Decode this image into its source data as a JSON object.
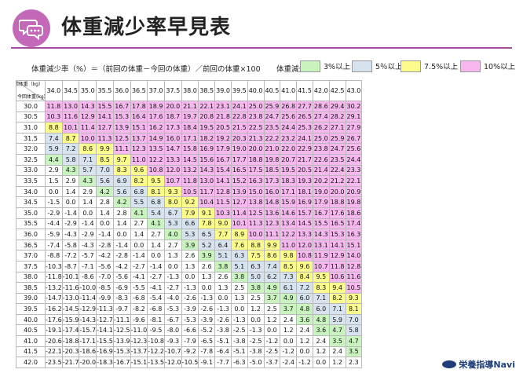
{
  "title": "体重減少率早見表",
  "icon": "speech-bubbles-icon",
  "formula": "体重減少率（%）＝（前回の体重－今回の体重）／前回の体重×100",
  "legend": {
    "label": "体重減少率",
    "items": [
      {
        "text": "3%以上",
        "color": "#c9f4bf"
      },
      {
        "text": "5％以上",
        "color": "#d7e4f0"
      },
      {
        "text": "7.5%以上",
        "color": "#fcfc8c"
      },
      {
        "text": "10%以上",
        "color": "#f7b8ef"
      }
    ]
  },
  "corner": {
    "prev": "前回体重（kg）",
    "curr": "今回体重(kg)"
  },
  "prev_weights": [
    "34.0",
    "34.5",
    "35.0",
    "35.5",
    "36.0",
    "36.5",
    "37.0",
    "37.5",
    "38.0",
    "38.5",
    "39.0",
    "39.5",
    "40.0",
    "40.5",
    "41.0",
    "41.5",
    "42.0",
    "42.5",
    "43.0"
  ],
  "rows": [
    {
      "w": "30.0",
      "v": [
        "11.8",
        "13.0",
        "14.3",
        "15.5",
        "16.7",
        "17.8",
        "18.9",
        "20.0",
        "21.1",
        "22.1",
        "23.1",
        "24.1",
        "25.0",
        "25.9",
        "26.8",
        "27.7",
        "28.6",
        "29.4",
        "30.2"
      ]
    },
    {
      "w": "30.5",
      "v": [
        "10.3",
        "11.6",
        "12.9",
        "14.1",
        "15.3",
        "16.4",
        "17.6",
        "18.7",
        "19.7",
        "20.8",
        "21.8",
        "22.8",
        "23.8",
        "24.7",
        "25.6",
        "26.5",
        "27.4",
        "28.2",
        "29.1"
      ]
    },
    {
      "w": "31.0",
      "v": [
        "8.8",
        "10.1",
        "11.4",
        "12.7",
        "13.9",
        "15.1",
        "16.2",
        "17.3",
        "18.4",
        "19.5",
        "20.5",
        "21.5",
        "22.5",
        "23.5",
        "24.4",
        "25.3",
        "26.2",
        "27.1",
        "27.9"
      ]
    },
    {
      "w": "31.5",
      "v": [
        "7.4",
        "8.7",
        "10.0",
        "11.3",
        "12.5",
        "13.7",
        "14.9",
        "16.0",
        "17.1",
        "18.2",
        "19.2",
        "20.3",
        "21.3",
        "22.2",
        "23.2",
        "24.1",
        "25.0",
        "25.9",
        "26.7"
      ]
    },
    {
      "w": "32.0",
      "v": [
        "5.9",
        "7.2",
        "8.6",
        "9.9",
        "11.1",
        "12.3",
        "13.5",
        "14.7",
        "15.8",
        "16.9",
        "17.9",
        "19.0",
        "20.0",
        "21.0",
        "22.0",
        "22.9",
        "23.8",
        "24.7",
        "25.6"
      ]
    },
    {
      "w": "32.5",
      "v": [
        "4.4",
        "5.8",
        "7.1",
        "8.5",
        "9.7",
        "11.0",
        "12.2",
        "13.3",
        "14.5",
        "15.6",
        "16.7",
        "17.7",
        "18.8",
        "19.8",
        "20.7",
        "21.7",
        "22.6",
        "23.5",
        "24.4"
      ]
    },
    {
      "w": "33.0",
      "v": [
        "2.9",
        "4.3",
        "5.7",
        "7.0",
        "8.3",
        "9.6",
        "10.8",
        "12.0",
        "13.2",
        "14.3",
        "15.4",
        "16.5",
        "17.5",
        "18.5",
        "19.5",
        "20.5",
        "21.4",
        "22.4",
        "23.3"
      ]
    },
    {
      "w": "33.5",
      "v": [
        "1.5",
        "2.9",
        "4.3",
        "5.6",
        "6.9",
        "8.2",
        "9.5",
        "10.7",
        "11.8",
        "13.0",
        "14.1",
        "15.2",
        "16.3",
        "17.3",
        "18.3",
        "19.3",
        "20.2",
        "21.2",
        "22.1"
      ]
    },
    {
      "w": "34.0",
      "v": [
        "0.0",
        "1.4",
        "2.9",
        "4.2",
        "5.6",
        "6.8",
        "8.1",
        "9.3",
        "10.5",
        "11.7",
        "12.8",
        "13.9",
        "15.0",
        "16.0",
        "17.1",
        "18.1",
        "19.0",
        "20.0",
        "20.9"
      ]
    },
    {
      "w": "34.5",
      "v": [
        "-1.5",
        "0.0",
        "1.4",
        "2.8",
        "4.2",
        "5.5",
        "6.8",
        "8.0",
        "9.2",
        "10.4",
        "11.5",
        "12.7",
        "13.8",
        "14.8",
        "15.9",
        "16.9",
        "17.9",
        "18.8",
        "19.8"
      ]
    },
    {
      "w": "35.0",
      "v": [
        "-2.9",
        "-1.4",
        "0.0",
        "1.4",
        "2.8",
        "4.1",
        "5.4",
        "6.7",
        "7.9",
        "9.1",
        "10.3",
        "11.4",
        "12.5",
        "13.6",
        "14.6",
        "15.7",
        "16.7",
        "17.6",
        "18.6"
      ]
    },
    {
      "w": "35.5",
      "v": [
        "-4.4",
        "-2.9",
        "-1.4",
        "0.0",
        "1.4",
        "2.7",
        "4.1",
        "5.3",
        "6.6",
        "7.8",
        "9.0",
        "10.1",
        "11.3",
        "12.3",
        "13.4",
        "14.5",
        "15.5",
        "16.5",
        "17.4"
      ]
    },
    {
      "w": "36.0",
      "v": [
        "-5.9",
        "-4.3",
        "-2.9",
        "-1.4",
        "0.0",
        "1.4",
        "2.7",
        "4.0",
        "5.3",
        "6.5",
        "7.7",
        "8.9",
        "10.0",
        "11.1",
        "12.2",
        "13.3",
        "14.3",
        "15.3",
        "16.3"
      ]
    },
    {
      "w": "36.5",
      "v": [
        "-7.4",
        "-5.8",
        "-4.3",
        "-2.8",
        "-1.4",
        "0.0",
        "1.4",
        "2.7",
        "3.9",
        "5.2",
        "6.4",
        "7.6",
        "8.8",
        "9.9",
        "11.0",
        "12.0",
        "13.1",
        "14.1",
        "15.1"
      ]
    },
    {
      "w": "37.0",
      "v": [
        "-8.8",
        "-7.2",
        "-5.7",
        "-4.2",
        "-2.8",
        "-1.4",
        "0.0",
        "1.3",
        "2.6",
        "3.9",
        "5.1",
        "6.3",
        "7.5",
        "8.6",
        "9.8",
        "10.8",
        "11.9",
        "12.9",
        "14.0"
      ]
    },
    {
      "w": "37.5",
      "v": [
        "-10.3",
        "-8.7",
        "-7.1",
        "-5.6",
        "-4.2",
        "-2.7",
        "-1.4",
        "0.0",
        "1.3",
        "2.6",
        "3.8",
        "5.1",
        "6.3",
        "7.4",
        "8.5",
        "9.6",
        "10.7",
        "11.8",
        "12.8"
      ]
    },
    {
      "w": "38.0",
      "v": [
        "-11.8",
        "-10.1",
        "-8.6",
        "-7.0",
        "-5.6",
        "-4.1",
        "-2.7",
        "-1.3",
        "0.0",
        "1.3",
        "2.6",
        "3.8",
        "5.0",
        "6.2",
        "7.3",
        "8.4",
        "9.5",
        "10.6",
        "11.6"
      ]
    },
    {
      "w": "38.5",
      "v": [
        "-13.2",
        "-11.6",
        "-10.0",
        "-8.5",
        "-6.9",
        "-5.5",
        "-4.1",
        "-2.7",
        "-1.3",
        "0.0",
        "1.3",
        "2.5",
        "3.8",
        "4.9",
        "6.1",
        "7.2",
        "8.3",
        "9.4",
        "10.5"
      ]
    },
    {
      "w": "39.0",
      "v": [
        "-14.7",
        "-13.0",
        "-11.4",
        "-9.9",
        "-8.3",
        "-6.8",
        "-5.4",
        "-4.0",
        "-2.6",
        "-1.3",
        "0.0",
        "1.3",
        "2.5",
        "3.7",
        "4.9",
        "6.0",
        "7.1",
        "8.2",
        "9.3"
      ]
    },
    {
      "w": "39.5",
      "v": [
        "-16.2",
        "-14.5",
        "-12.9",
        "-11.3",
        "-9.7",
        "-8.2",
        "-6.8",
        "-5.3",
        "-3.9",
        "-2.6",
        "-1.3",
        "0.0",
        "1.2",
        "2.5",
        "3.7",
        "4.8",
        "6.0",
        "7.1",
        "8.1"
      ]
    },
    {
      "w": "40.0",
      "v": [
        "-17.6",
        "-15.9",
        "-14.3",
        "-12.7",
        "-11.1",
        "-9.6",
        "-8.1",
        "-6.7",
        "-5.3",
        "-3.9",
        "-2.6",
        "-1.3",
        "0.0",
        "1.2",
        "2.4",
        "3.6",
        "4.8",
        "5.9",
        "7.0"
      ]
    },
    {
      "w": "40.5",
      "v": [
        "-19.1",
        "-17.4",
        "-15.7",
        "-14.1",
        "-12.5",
        "-11.0",
        "-9.5",
        "-8.0",
        "-6.6",
        "-5.2",
        "-3.8",
        "-2.5",
        "-1.3",
        "0.0",
        "1.2",
        "2.4",
        "3.6",
        "4.7",
        "5.8"
      ]
    },
    {
      "w": "41.0",
      "v": [
        "-20.6",
        "-18.8",
        "-17.1",
        "-15.5",
        "-13.9",
        "-12.3",
        "-10.8",
        "-9.3",
        "-7.9",
        "-6.5",
        "-5.1",
        "-3.8",
        "-2.5",
        "-1.2",
        "0.0",
        "1.2",
        "2.4",
        "3.5",
        "4.7"
      ]
    },
    {
      "w": "41.5",
      "v": [
        "-22.1",
        "-20.3",
        "-18.6",
        "-16.9",
        "-15.3",
        "-13.7",
        "-12.2",
        "-10.7",
        "-9.2",
        "-7.8",
        "-6.4",
        "-5.1",
        "-3.8",
        "-2.5",
        "-1.2",
        "0.0",
        "1.2",
        "2.4",
        "3.5"
      ]
    },
    {
      "w": "42.0",
      "v": [
        "-23.5",
        "-21.7",
        "-20.0",
        "-18.3",
        "-16.7",
        "-15.1",
        "-13.5",
        "-12.0",
        "-10.5",
        "-9.1",
        "-7.7",
        "-6.3",
        "-5.0",
        "-3.7",
        "-2.4",
        "-1.2",
        "0.0",
        "1.2",
        "2.3"
      ]
    }
  ],
  "logo": "栄養指導Navi"
}
